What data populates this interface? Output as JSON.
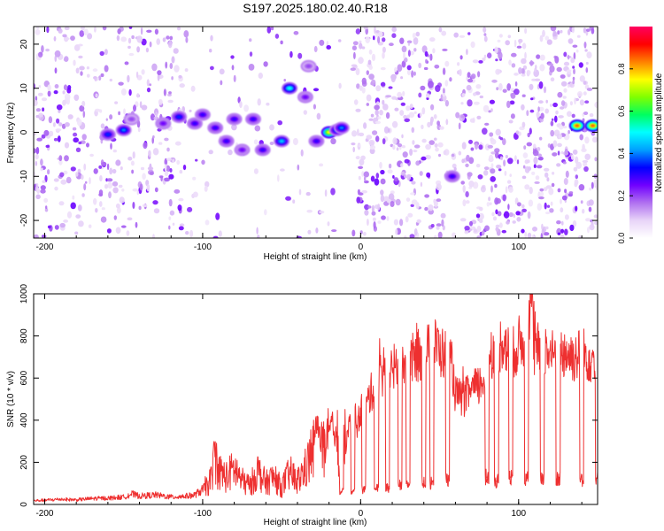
{
  "title": "S197.2025.180.02.40.R18",
  "chart_data": [
    {
      "type": "heatmap",
      "title": "S197.2025.180.02.40.R18",
      "xlabel": "Height of straight line (km)",
      "ylabel": "Frequency (Hz)",
      "xlim": [
        -207,
        150
      ],
      "ylim": [
        -24,
        24
      ],
      "xticks": [
        -200,
        -100,
        0,
        100
      ],
      "yticks": [
        -20,
        -10,
        0,
        10,
        20
      ],
      "colorbar": {
        "label": "Normalized spectral amplitude",
        "range": [
          0,
          1
        ],
        "ticks": [
          "0.0",
          "0.2",
          "0.4",
          "0.6",
          "0.8"
        ],
        "colors": [
          "#ffffff",
          "#e8d4f8",
          "#b070f0",
          "#7000ff",
          "#0000ff",
          "#00a0ff",
          "#00ffff",
          "#00ff60",
          "#80ff00",
          "#ffff00",
          "#ff8000",
          "#ff0000",
          "#ff0060"
        ]
      },
      "features": [
        {
          "x": -160,
          "y": -0.5,
          "value": 0.35
        },
        {
          "x": -150,
          "y": 0.5,
          "value": 0.4
        },
        {
          "x": -145,
          "y": 3,
          "value": 0.2
        },
        {
          "x": -125,
          "y": 2,
          "value": 0.25
        },
        {
          "x": -115,
          "y": 3.5,
          "value": 0.35
        },
        {
          "x": -105,
          "y": 2,
          "value": 0.3
        },
        {
          "x": -100,
          "y": 4,
          "value": 0.3
        },
        {
          "x": -92,
          "y": 1,
          "value": 0.3
        },
        {
          "x": -85,
          "y": -2,
          "value": 0.3
        },
        {
          "x": -80,
          "y": 3,
          "value": 0.3
        },
        {
          "x": -75,
          "y": -4,
          "value": 0.25
        },
        {
          "x": -68,
          "y": 3,
          "value": 0.3
        },
        {
          "x": -62,
          "y": -4,
          "value": 0.3
        },
        {
          "x": -50,
          "y": -2,
          "value": 0.45
        },
        {
          "x": -45,
          "y": 10,
          "value": 0.5
        },
        {
          "x": -35,
          "y": 8,
          "value": 0.25
        },
        {
          "x": -33,
          "y": 15,
          "value": 0.2
        },
        {
          "x": -28,
          "y": -2,
          "value": 0.3
        },
        {
          "x": -20,
          "y": 0,
          "value": 0.75
        },
        {
          "x": -15,
          "y": 0.5,
          "value": 0.4
        },
        {
          "x": -12,
          "y": 1,
          "value": 0.4
        },
        {
          "x": 58,
          "y": -10,
          "value": 0.3
        },
        {
          "x": 137,
          "y": 1.5,
          "value": 0.85
        },
        {
          "x": 147,
          "y": 1.5,
          "value": 0.85
        }
      ]
    },
    {
      "type": "line",
      "xlabel": "Height of straight line (km)",
      "ylabel": "SNR (10 * v/v)",
      "xlim": [
        -207,
        150
      ],
      "ylim": [
        0,
        1000
      ],
      "xticks": [
        -200,
        -100,
        0,
        100
      ],
      "yticks": [
        0,
        200,
        400,
        600,
        800,
        1000
      ],
      "color": "#ee3030",
      "series": [
        {
          "x": [
            -207,
            -200,
            -190,
            -180,
            -170,
            -160,
            -150,
            -145,
            -140,
            -130,
            -120,
            -110,
            -105,
            -100,
            -95,
            -92,
            -90,
            -85,
            -80,
            -75,
            -70,
            -65,
            -60,
            -55,
            -50,
            -45,
            -40,
            -35,
            -30,
            -28,
            -25,
            -22,
            -20,
            -18,
            -15,
            -12,
            -10,
            -8,
            -6,
            -4,
            -2,
            0,
            3,
            6,
            10,
            15,
            20,
            25,
            30,
            35,
            40,
            45,
            48,
            50,
            55,
            58,
            60,
            65,
            70,
            75,
            78,
            80,
            85,
            90,
            95,
            100,
            105,
            108,
            110,
            115,
            120,
            125,
            130,
            135,
            140,
            145,
            150
          ],
          "y": [
            18,
            20,
            25,
            22,
            28,
            30,
            35,
            50,
            40,
            45,
            35,
            40,
            45,
            70,
            110,
            240,
            160,
            130,
            170,
            110,
            90,
            160,
            100,
            130,
            80,
            150,
            110,
            170,
            250,
            390,
            300,
            200,
            340,
            380,
            300,
            260,
            280,
            340,
            400,
            420,
            380,
            440,
            460,
            520,
            580,
            620,
            650,
            640,
            680,
            700,
            720,
            740,
            760,
            730,
            700,
            650,
            520,
            500,
            540,
            560,
            600,
            740,
            720,
            780,
            700,
            760,
            800,
            1000,
            720,
            760,
            700,
            730,
            720,
            700,
            720,
            700,
            690
          ]
        }
      ],
      "dips": [
        {
          "x": -12,
          "y": 60
        },
        {
          "x": -5,
          "y": 60
        },
        {
          "x": 2,
          "y": 70
        },
        {
          "x": 10,
          "y": 80
        },
        {
          "x": 17,
          "y": 80
        },
        {
          "x": 25,
          "y": 90
        },
        {
          "x": 30,
          "y": 90
        },
        {
          "x": 40,
          "y": 110
        },
        {
          "x": 45,
          "y": 100
        },
        {
          "x": 55,
          "y": 120
        },
        {
          "x": 80,
          "y": 130
        },
        {
          "x": 86,
          "y": 110
        },
        {
          "x": 95,
          "y": 130
        },
        {
          "x": 105,
          "y": 120
        },
        {
          "x": 115,
          "y": 120
        },
        {
          "x": 125,
          "y": 120
        },
        {
          "x": 140,
          "y": 120
        },
        {
          "x": 150,
          "y": 120
        }
      ]
    }
  ]
}
